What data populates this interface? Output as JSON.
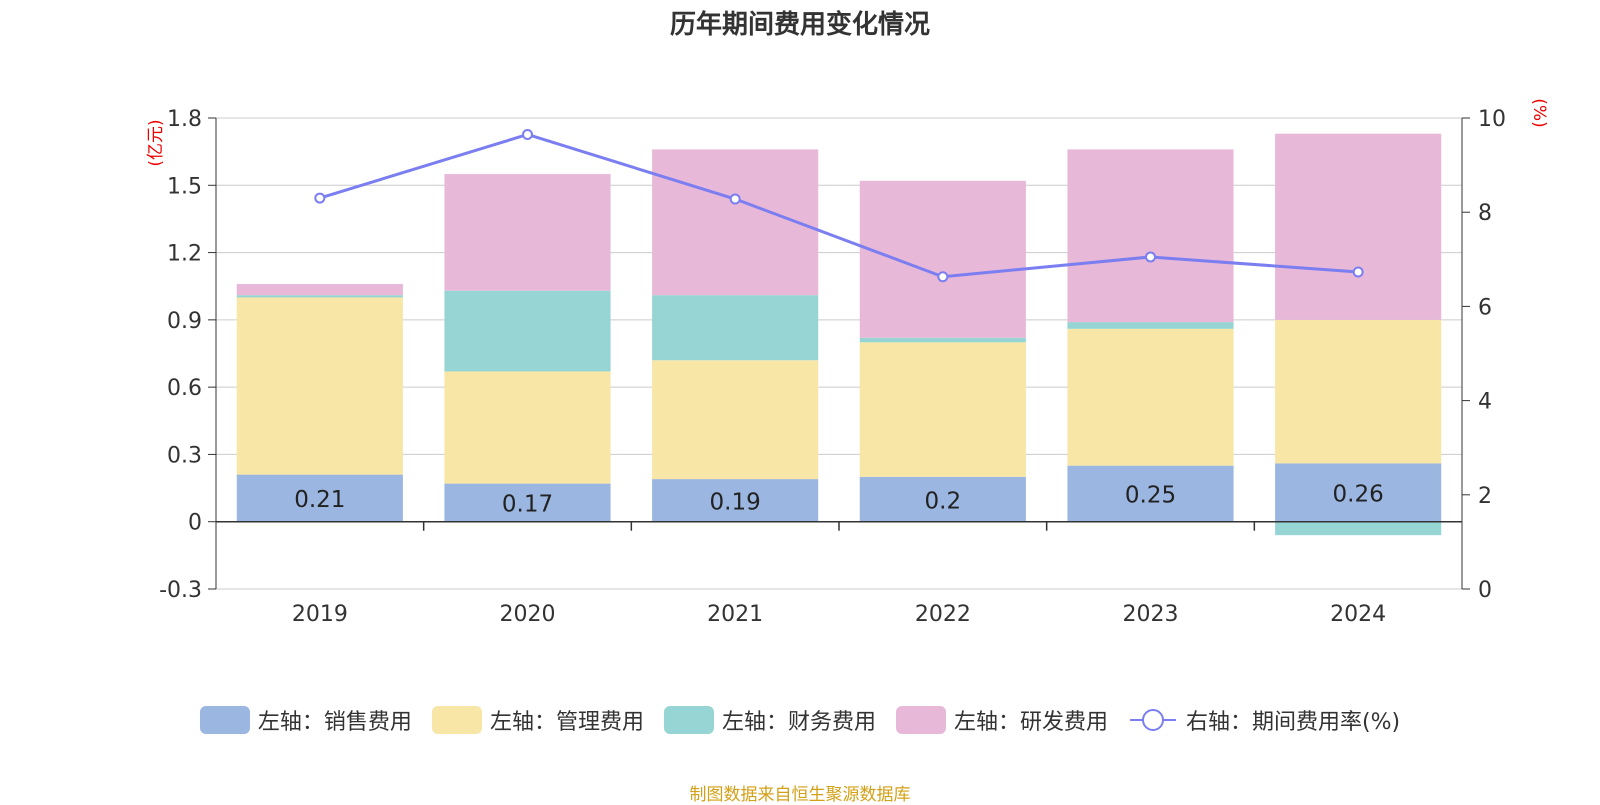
{
  "title": "历年期间费用变化情况",
  "source": "制图数据来自恒生聚源数据库",
  "chart_data": {
    "type": "bar",
    "stacked": true,
    "title": "历年期间费用变化情况",
    "categories": [
      "2019",
      "2020",
      "2021",
      "2022",
      "2023",
      "2024"
    ],
    "left_axis": {
      "unit": "(亿元)",
      "min": -0.3,
      "max": 1.8,
      "ticks": [
        -0.3,
        0,
        0.3,
        0.6,
        0.9,
        1.2,
        1.5,
        1.8
      ],
      "tick_labels": [
        "-0.3",
        "0",
        "0.3",
        "0.6",
        "0.9",
        "1.2",
        "1.5",
        "1.8"
      ]
    },
    "right_axis": {
      "unit": "(%)",
      "min": 0,
      "max": 10,
      "ticks": [
        0,
        2,
        4,
        6,
        8,
        10
      ],
      "tick_labels": [
        "0",
        "2",
        "4",
        "6",
        "8",
        "10"
      ]
    },
    "series": [
      {
        "name": "左轴：销售费用",
        "color": "#9bb6e0",
        "type": "bar",
        "values": [
          0.21,
          0.17,
          0.19,
          0.2,
          0.25,
          0.26
        ],
        "labels": [
          "0.21",
          "0.17",
          "0.19",
          "0.2",
          "0.25",
          "0.26"
        ]
      },
      {
        "name": "左轴：管理费用",
        "color": "#f7e6a6",
        "type": "bar",
        "values": [
          0.79,
          0.5,
          0.53,
          0.6,
          0.61,
          0.64
        ]
      },
      {
        "name": "左轴：财务费用",
        "color": "#97d4d4",
        "type": "bar",
        "values": [
          0.01,
          0.36,
          0.29,
          0.02,
          0.03,
          -0.06
        ]
      },
      {
        "name": "左轴：研发费用",
        "color": "#e8b8d8",
        "type": "bar",
        "values": [
          0.05,
          0.52,
          0.65,
          0.7,
          0.77,
          0.83
        ]
      },
      {
        "name": "右轴：期间费用率(%)",
        "color": "#7b7ef0",
        "type": "line",
        "axis": "right",
        "values": [
          8.3,
          9.65,
          8.28,
          6.63,
          7.05,
          6.73
        ]
      }
    ]
  }
}
